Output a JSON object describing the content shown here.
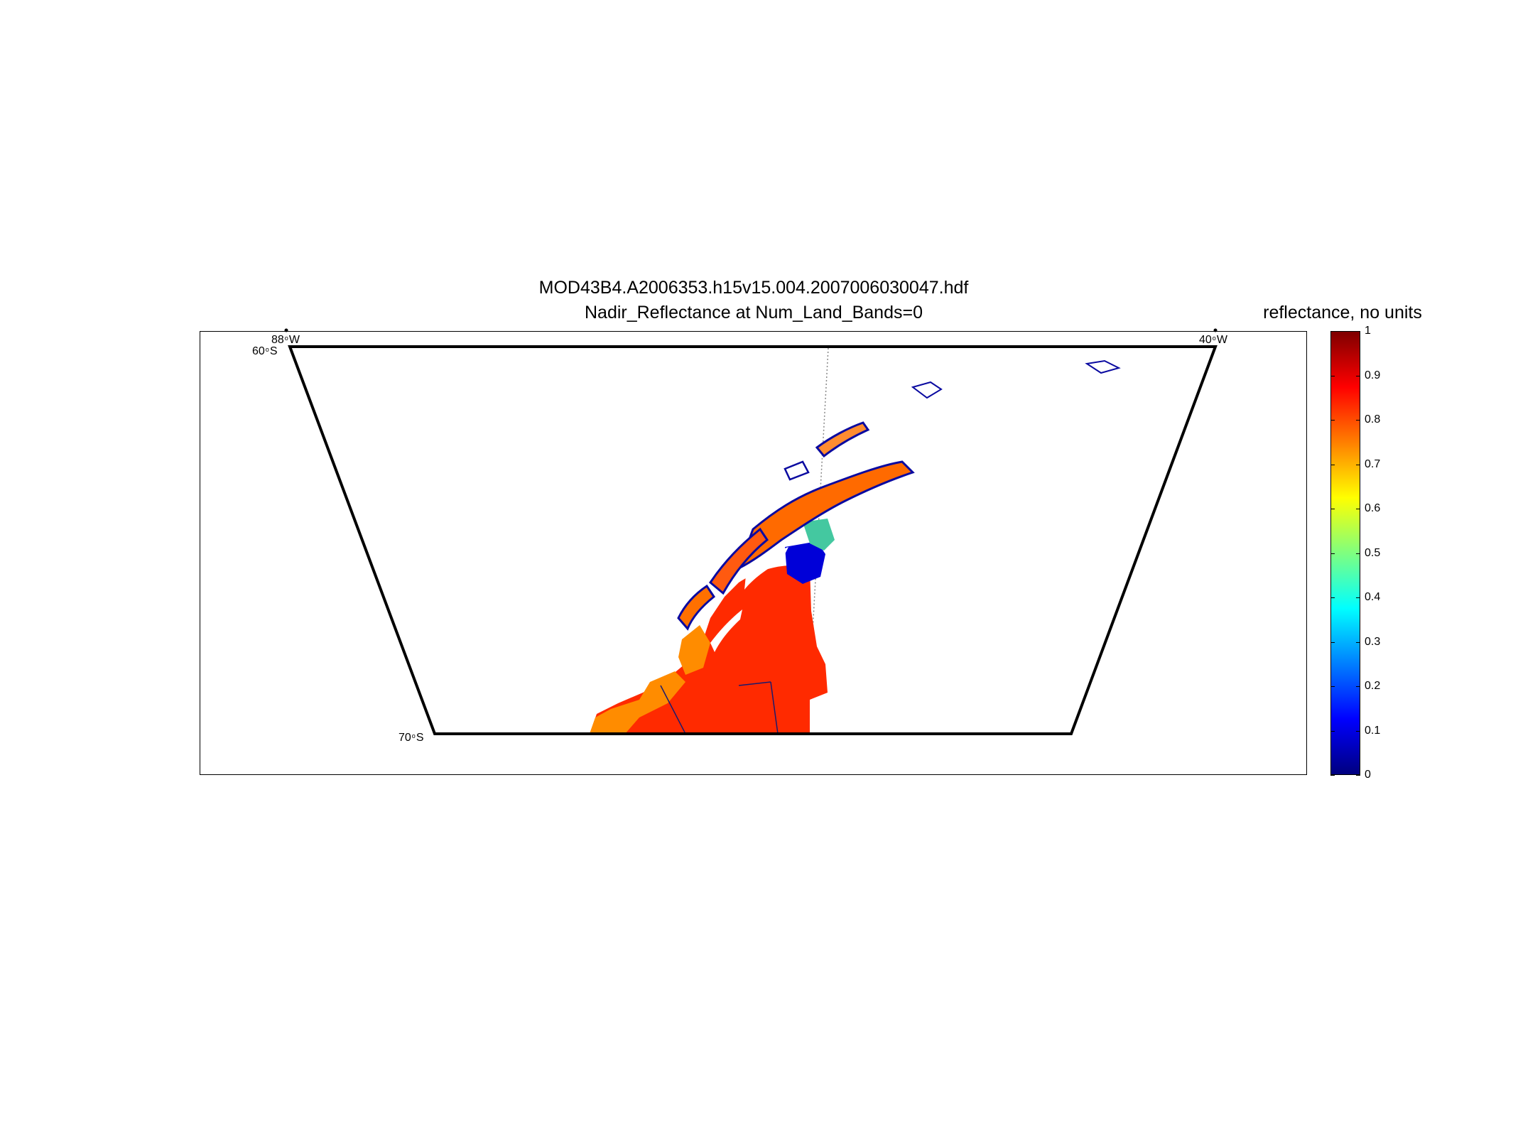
{
  "title": {
    "line1": "MOD43B4.A2006353.h15v15.004.2007006030047.hdf",
    "line2": "Nadir_Reflectance at Num_Land_Bands=0"
  },
  "map": {
    "graticule_labels": {
      "lon_west": {
        "value": "88",
        "hemisphere": "W"
      },
      "lon_east": {
        "value": "40",
        "hemisphere": "W"
      },
      "lat_north": {
        "value": "60",
        "hemisphere": "S"
      },
      "lat_south": {
        "value": "70",
        "hemisphere": "S"
      }
    },
    "colors": {
      "outline": "#000000",
      "coastline": "#1a1a6e",
      "low_reflectance": "#0000ff",
      "high_reflectance": "#ff2a00"
    }
  },
  "colorbar": {
    "title": "reflectance, no units",
    "colormap": "jet",
    "range": [
      0,
      1
    ],
    "ticks": [
      "0",
      "0.1",
      "0.2",
      "0.3",
      "0.4",
      "0.5",
      "0.6",
      "0.7",
      "0.8",
      "0.9",
      "1"
    ]
  }
}
